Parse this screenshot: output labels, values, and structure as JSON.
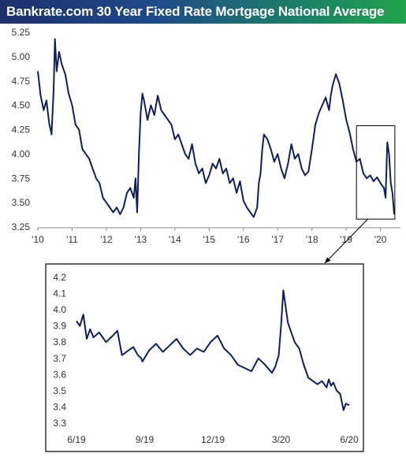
{
  "title": "Bankrate.com 30 Year Fixed Rate Mortgage National Average",
  "colors": {
    "line": "#0d1f5c",
    "frame": "#000000",
    "title_bg_start": "#1d2f6b",
    "title_bg_end": "#1fa34d"
  },
  "chart_data": [
    {
      "type": "line",
      "name": "main",
      "title": "Bankrate.com 30 Year Fixed Rate Mortgage National Average",
      "xlabel": "",
      "ylabel": "",
      "xlim": [
        2010.0,
        2020.4
      ],
      "ylim": [
        3.25,
        5.25
      ],
      "grid": false,
      "x_ticks": [
        2010,
        2011,
        2012,
        2013,
        2014,
        2015,
        2016,
        2017,
        2018,
        2019,
        2020
      ],
      "x_tick_labels": [
        "'10",
        "'11",
        "'12",
        "'13",
        "'14",
        "'15",
        "'16",
        "'17",
        "'18",
        "'19",
        "'20"
      ],
      "y_ticks": [
        3.25,
        3.5,
        3.75,
        4.0,
        4.25,
        4.5,
        4.75,
        5.0,
        5.25
      ],
      "y_tick_labels": [
        "3.25",
        "3.50",
        "3.75",
        "4.00",
        "4.25",
        "4.50",
        "4.75",
        "5.00",
        "5.25"
      ],
      "highlight_box": {
        "x": [
          2019.3,
          2020.42
        ],
        "y": [
          3.33,
          4.29
        ]
      },
      "series": [
        {
          "x": [
            2010.0,
            2010.08,
            2010.17,
            2010.25,
            2010.33,
            2010.4,
            2010.46,
            2010.5,
            2010.55,
            2010.62,
            2010.7,
            2010.8,
            2010.9,
            2011.0,
            2011.1,
            2011.2,
            2011.3,
            2011.4,
            2011.5,
            2011.6,
            2011.7,
            2011.8,
            2011.9,
            2012.0,
            2012.1,
            2012.2,
            2012.3,
            2012.4,
            2012.5,
            2012.6,
            2012.7,
            2012.8,
            2012.85,
            2012.9,
            2012.95,
            2013.0,
            2013.05,
            2013.1,
            2013.2,
            2013.3,
            2013.4,
            2013.5,
            2013.6,
            2013.7,
            2013.8,
            2013.9,
            2014.0,
            2014.1,
            2014.2,
            2014.3,
            2014.4,
            2014.5,
            2014.6,
            2014.7,
            2014.8,
            2014.9,
            2015.0,
            2015.1,
            2015.2,
            2015.3,
            2015.4,
            2015.5,
            2015.6,
            2015.7,
            2015.8,
            2015.9,
            2016.0,
            2016.1,
            2016.2,
            2016.3,
            2016.4,
            2016.45,
            2016.5,
            2016.55,
            2016.6,
            2016.7,
            2016.8,
            2016.9,
            2017.0,
            2017.1,
            2017.2,
            2017.3,
            2017.4,
            2017.5,
            2017.6,
            2017.7,
            2017.8,
            2017.9,
            2018.0,
            2018.1,
            2018.2,
            2018.3,
            2018.4,
            2018.5,
            2018.55,
            2018.6,
            2018.7,
            2018.8,
            2018.9,
            2019.0,
            2019.1,
            2019.2,
            2019.3,
            2019.4,
            2019.5,
            2019.6,
            2019.7,
            2019.8,
            2019.9,
            2020.0,
            2020.1,
            2020.15,
            2020.2,
            2020.25,
            2020.3,
            2020.35,
            2020.4
          ],
          "y": [
            4.85,
            4.6,
            4.45,
            4.55,
            4.32,
            4.2,
            4.65,
            5.18,
            4.85,
            5.05,
            4.92,
            4.82,
            4.62,
            4.5,
            4.3,
            4.25,
            4.05,
            4.0,
            3.95,
            3.85,
            3.75,
            3.7,
            3.55,
            3.5,
            3.45,
            3.4,
            3.45,
            3.38,
            3.45,
            3.6,
            3.65,
            3.55,
            3.75,
            3.4,
            4.0,
            4.42,
            4.62,
            4.55,
            4.35,
            4.5,
            4.4,
            4.6,
            4.45,
            4.4,
            4.35,
            4.3,
            4.15,
            4.2,
            4.1,
            4.0,
            3.95,
            4.1,
            3.9,
            3.8,
            3.85,
            3.7,
            3.78,
            3.9,
            3.85,
            3.95,
            3.8,
            3.85,
            3.7,
            3.75,
            3.6,
            3.72,
            3.52,
            3.45,
            3.4,
            3.35,
            3.45,
            3.7,
            3.8,
            4.05,
            4.2,
            4.15,
            4.05,
            3.92,
            4.0,
            3.85,
            3.75,
            3.9,
            4.1,
            3.95,
            4.0,
            3.85,
            3.78,
            3.82,
            4.05,
            4.3,
            4.42,
            4.5,
            4.58,
            4.45,
            4.6,
            4.7,
            4.82,
            4.72,
            4.55,
            4.35,
            4.22,
            4.05,
            3.92,
            3.95,
            3.8,
            3.75,
            3.78,
            3.72,
            3.76,
            3.7,
            3.65,
            3.55,
            4.12,
            4.0,
            3.7,
            3.6,
            3.38
          ]
        }
      ]
    },
    {
      "type": "line",
      "name": "inset",
      "title": "",
      "xlabel": "",
      "ylabel": "",
      "xlim": [
        0,
        12
      ],
      "ylim": [
        3.3,
        4.2
      ],
      "grid": false,
      "x_ticks": [
        0,
        3,
        6,
        9,
        12
      ],
      "x_tick_labels": [
        "6/19",
        "9/19",
        "12/19",
        "3/20",
        "6/20"
      ],
      "y_ticks": [
        3.3,
        3.4,
        3.5,
        3.6,
        3.7,
        3.8,
        3.9,
        4.0,
        4.1,
        4.2
      ],
      "y_tick_labels": [
        "3.3",
        "3.4",
        "3.5",
        "3.6",
        "3.7",
        "3.8",
        "3.9",
        "4.0",
        "4.1",
        "4.2"
      ],
      "series": [
        {
          "x": [
            0.0,
            0.15,
            0.3,
            0.45,
            0.6,
            0.75,
            1.0,
            1.3,
            1.6,
            1.8,
            2.0,
            2.3,
            2.5,
            2.7,
            2.85,
            2.9,
            3.2,
            3.5,
            3.8,
            4.1,
            4.4,
            4.7,
            5.0,
            5.3,
            5.6,
            5.9,
            6.2,
            6.5,
            6.8,
            7.1,
            7.4,
            7.7,
            8.0,
            8.3,
            8.6,
            8.75,
            8.9,
            9.0,
            9.1,
            9.2,
            9.3,
            9.45,
            9.6,
            9.8,
            10.0,
            10.2,
            10.4,
            10.6,
            10.8,
            11.0,
            11.1,
            11.2,
            11.3,
            11.45,
            11.6,
            11.75,
            11.85,
            12.0
          ],
          "y": [
            3.93,
            3.9,
            3.97,
            3.82,
            3.88,
            3.83,
            3.86,
            3.8,
            3.84,
            3.87,
            3.72,
            3.75,
            3.77,
            3.72,
            3.7,
            3.68,
            3.75,
            3.79,
            3.74,
            3.78,
            3.82,
            3.76,
            3.72,
            3.76,
            3.74,
            3.8,
            3.84,
            3.76,
            3.72,
            3.66,
            3.64,
            3.62,
            3.7,
            3.66,
            3.61,
            3.65,
            3.72,
            3.9,
            4.12,
            4.02,
            3.92,
            3.86,
            3.8,
            3.76,
            3.66,
            3.58,
            3.56,
            3.54,
            3.56,
            3.52,
            3.57,
            3.53,
            3.55,
            3.5,
            3.48,
            3.38,
            3.42,
            3.41
          ]
        }
      ]
    }
  ]
}
